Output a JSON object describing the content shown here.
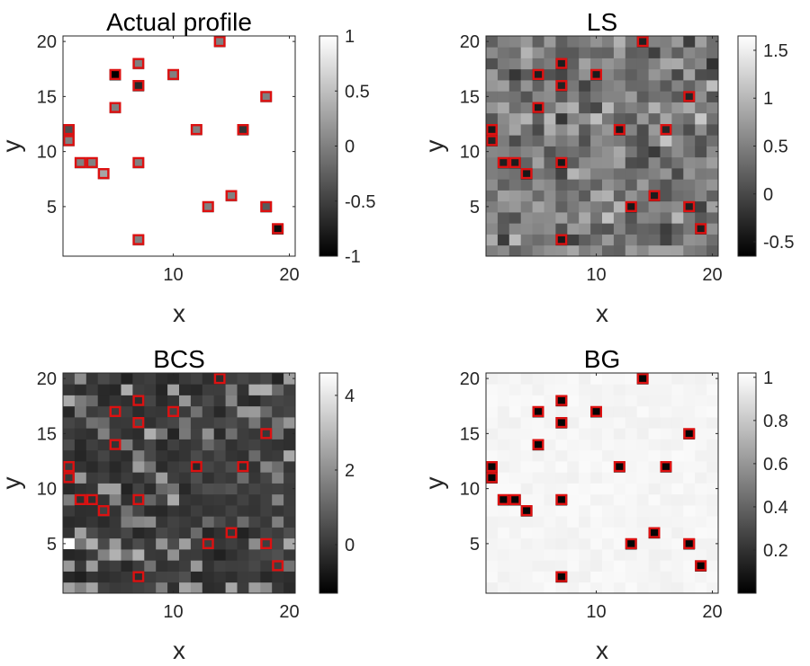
{
  "chart_data": [
    {
      "type": "heatmap",
      "title": "Actual profile",
      "xlabel": "x",
      "ylabel": "y",
      "xlim": [
        0.5,
        20.5
      ],
      "ylim": [
        0.5,
        20.5
      ],
      "xticks": [
        10,
        20
      ],
      "yticks": [
        5,
        10,
        15,
        20
      ],
      "colormap": "gray",
      "clim": [
        -1,
        1
      ],
      "colorbar_ticks": [
        -1,
        -0.5,
        0,
        0.5,
        1
      ],
      "colorbar_labels": [
        "-1",
        "-0.5",
        "0",
        "0.5",
        "1"
      ],
      "background_value": 1,
      "marked_cells": [
        [
          1,
          12,
          -0.4
        ],
        [
          1,
          11,
          0
        ],
        [
          2,
          9,
          0
        ],
        [
          3,
          9,
          0
        ],
        [
          4,
          8,
          0.3
        ],
        [
          5,
          17,
          -1
        ],
        [
          5,
          14,
          0
        ],
        [
          7,
          18,
          0
        ],
        [
          7,
          16,
          -0.7
        ],
        [
          7,
          9,
          0
        ],
        [
          7,
          2,
          0
        ],
        [
          10,
          17,
          0
        ],
        [
          12,
          12,
          0
        ],
        [
          13,
          5,
          0
        ],
        [
          14,
          20,
          0
        ],
        [
          15,
          6,
          0
        ],
        [
          16,
          12,
          -0.6
        ],
        [
          18,
          15,
          0
        ],
        [
          18,
          5,
          -0.3
        ],
        [
          19,
          3,
          -0.9
        ]
      ],
      "marker_color": "#dd1111"
    },
    {
      "type": "heatmap",
      "title": "LS",
      "xlabel": "x",
      "ylabel": "y",
      "xlim": [
        0.5,
        20.5
      ],
      "ylim": [
        0.5,
        20.5
      ],
      "xticks": [
        10,
        20
      ],
      "yticks": [
        5,
        10,
        15,
        20
      ],
      "colormap": "gray",
      "clim": [
        -0.65,
        1.65
      ],
      "colorbar_ticks": [
        -0.5,
        0,
        0.5,
        1,
        1.5
      ],
      "colorbar_labels": [
        "-0.5",
        "0",
        "0.5",
        "1",
        "1.5"
      ],
      "marker_color": "#dd1111"
    },
    {
      "type": "heatmap",
      "title": "BCS",
      "xlabel": "x",
      "ylabel": "y",
      "xlim": [
        0.5,
        20.5
      ],
      "ylim": [
        0.5,
        20.5
      ],
      "xticks": [
        10,
        20
      ],
      "yticks": [
        5,
        10,
        15,
        20
      ],
      "colormap": "gray",
      "clim": [
        -1.3,
        4.6
      ],
      "colorbar_ticks": [
        0,
        2,
        4
      ],
      "colorbar_labels": [
        "0",
        "2",
        "4"
      ],
      "marker_color": "#dd1111"
    },
    {
      "type": "heatmap",
      "title": "BG",
      "xlabel": "x",
      "ylabel": "y",
      "xlim": [
        0.5,
        20.5
      ],
      "ylim": [
        0.5,
        20.5
      ],
      "xticks": [
        10,
        20
      ],
      "yticks": [
        5,
        10,
        15,
        20
      ],
      "colormap": "gray",
      "clim": [
        0,
        1.02
      ],
      "colorbar_ticks": [
        0.2,
        0.4,
        0.6,
        0.8,
        1
      ],
      "colorbar_labels": [
        "0.2",
        "0.4",
        "0.6",
        "0.8",
        "1"
      ],
      "marker_color": "#dd1111"
    }
  ]
}
